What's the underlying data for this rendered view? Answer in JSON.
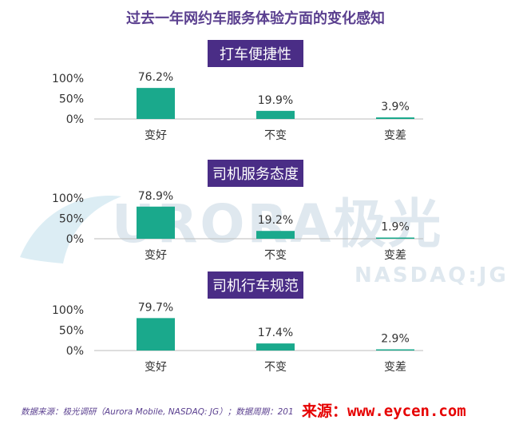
{
  "title": "过去一年网约车服务体验方面的变化感知",
  "watermark": {
    "brand": "URORA极光",
    "ticker": "NASDAQ:JG"
  },
  "source_note": "数据来源：极光调研（Aurora Mobile, NASDAQ: JG）；数据周期：201",
  "credit": "来源：www.eycen.com",
  "colors": {
    "bar": "#1aa98c",
    "title": "#5a3f8f",
    "section_bg": "#4a2d86",
    "axis": "#bbbbbb"
  },
  "chart_data": [
    {
      "type": "bar",
      "title": "打车便捷性",
      "categories": [
        "变好",
        "不变",
        "变差"
      ],
      "values": [
        76.2,
        19.9,
        3.9
      ],
      "value_labels": [
        "76.2%",
        "19.9%",
        "3.9%"
      ],
      "yticks": [
        "100%",
        "50%",
        "0%"
      ],
      "ylim": [
        0,
        100
      ]
    },
    {
      "type": "bar",
      "title": "司机服务态度",
      "categories": [
        "变好",
        "不变",
        "变差"
      ],
      "values": [
        78.9,
        19.2,
        1.9
      ],
      "value_labels": [
        "78.9%",
        "19.2%",
        "1.9%"
      ],
      "yticks": [
        "100%",
        "50%",
        "0%"
      ],
      "ylim": [
        0,
        100
      ]
    },
    {
      "type": "bar",
      "title": "司机行车规范",
      "categories": [
        "变好",
        "不变",
        "变差"
      ],
      "values": [
        79.7,
        17.4,
        2.9
      ],
      "value_labels": [
        "79.7%",
        "17.4%",
        "2.9%"
      ],
      "yticks": [
        "100%",
        "50%",
        "0%"
      ],
      "ylim": [
        0,
        100
      ]
    }
  ]
}
